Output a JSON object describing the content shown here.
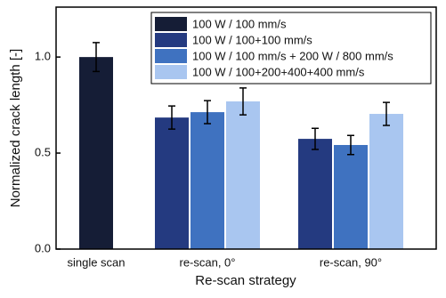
{
  "chart_data": {
    "type": "bar",
    "xlabel": "Re-scan strategy",
    "ylabel": "Normalized crack length [-]",
    "categories": [
      "single scan",
      "re-scan, 0°",
      "re-scan, 90°"
    ],
    "series": [
      {
        "name": "100 W / 100 mm/s",
        "color": "#151d36",
        "values": [
          1.0,
          null,
          null
        ],
        "errors": [
          0.075,
          null,
          null
        ]
      },
      {
        "name": "100 W / 100+100 mm/s",
        "color": "#243a80",
        "values": [
          null,
          0.685,
          0.574
        ],
        "errors": [
          null,
          0.06,
          0.055
        ]
      },
      {
        "name": "100 W / 100 mm/s + 200 W / 800 mm/s",
        "color": "#3f72c0",
        "values": [
          null,
          0.713,
          0.542
        ],
        "errors": [
          null,
          0.06,
          0.05
        ]
      },
      {
        "name": "100 W / 100+200+400+400 mm/s",
        "color": "#a9c6f0",
        "values": [
          null,
          0.769,
          0.704
        ],
        "errors": [
          null,
          0.07,
          0.06
        ]
      }
    ],
    "ylim": [
      0,
      1.26
    ],
    "yticks": [
      {
        "value": 0,
        "label": "0.0"
      },
      {
        "value": 0.5,
        "label": "0.5"
      },
      {
        "value": 1.0,
        "label": "1.0"
      }
    ],
    "legend": "top-right"
  }
}
